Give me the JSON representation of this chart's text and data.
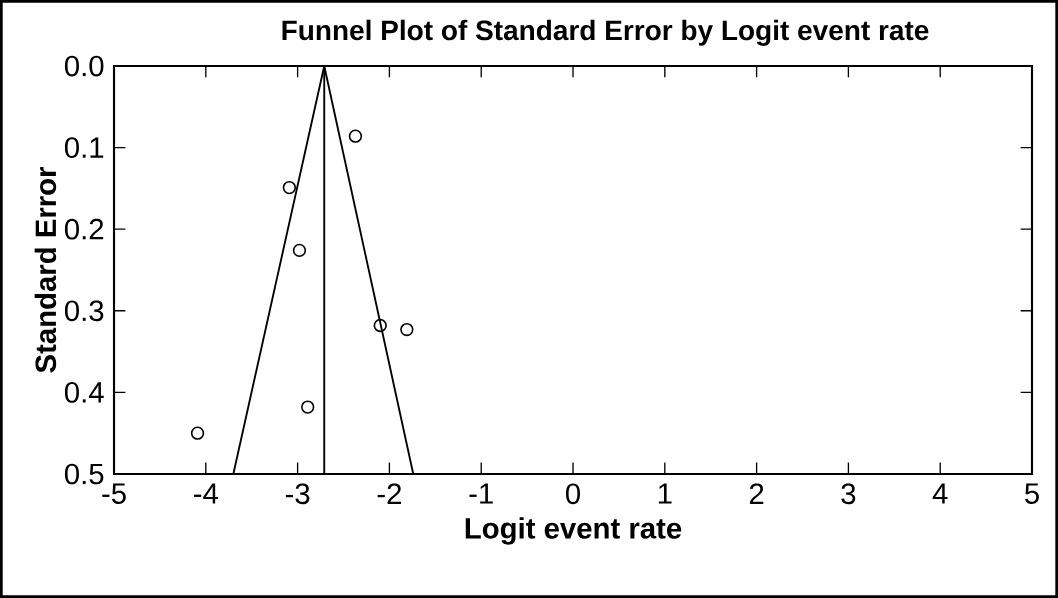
{
  "chart_data": {
    "type": "scatter",
    "title": "Funnel Plot of Standard Error by Logit event rate",
    "xlabel": "Logit event rate",
    "ylabel": "Standard Error",
    "x": [
      -2.37,
      -3.09,
      -2.98,
      -2.1,
      -1.81,
      -2.89,
      -4.09
    ],
    "series": [
      {
        "color": "#000000",
        "values": [
          0.086,
          0.149,
          0.226,
          0.318,
          0.323,
          0.418,
          0.45
        ]
      },
      {
        "type": "line",
        "marker": "none",
        "color": "#000000",
        "x": [
          -3.7,
          -2.71,
          -1.74
        ],
        "values": [
          0.5,
          0,
          0.5
        ]
      }
    ],
    "ref_lines": [
      {
        "axis": "x",
        "value": -2.71,
        "color": "#000000"
      }
    ],
    "xlim": [
      -5,
      5
    ],
    "xticks": [
      -5,
      -4,
      -3,
      -2,
      -1,
      0,
      1,
      2,
      3,
      4,
      5
    ],
    "ylim": [
      0.5,
      0
    ],
    "yticks": [
      {
        "value": 0,
        "label": "0.0"
      },
      0.1,
      0.2,
      0.3,
      0.4,
      0.5
    ],
    "marker": "circle",
    "grid": false
  }
}
